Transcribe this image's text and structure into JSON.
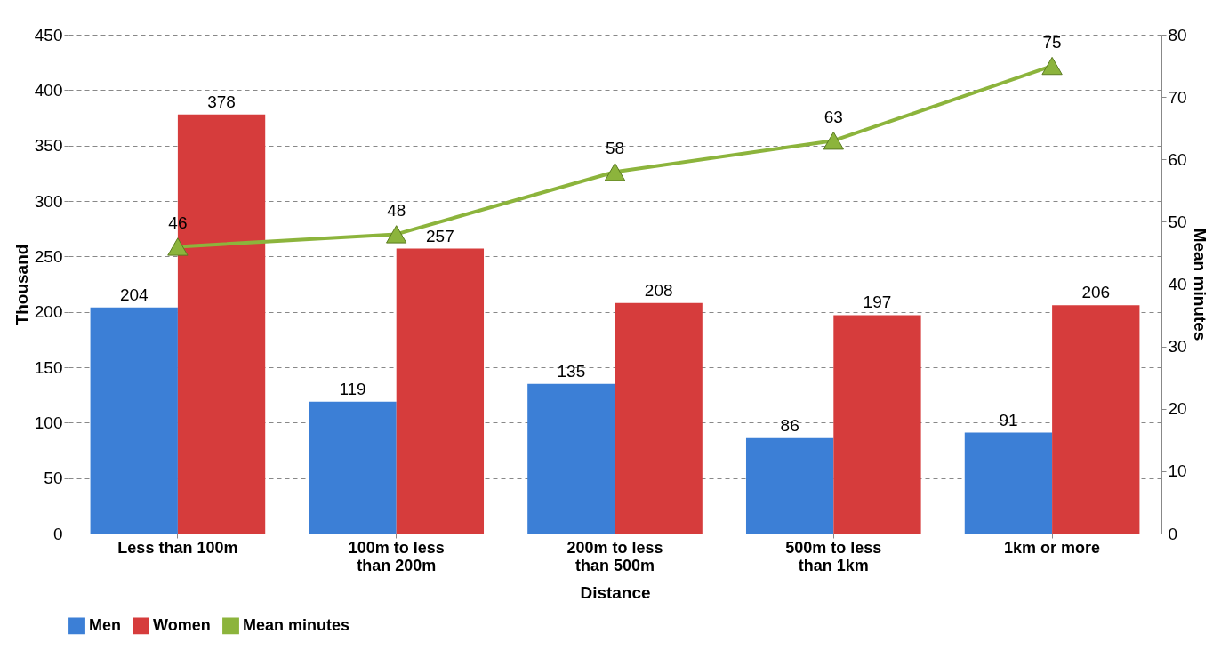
{
  "chart_data": {
    "type": "bar",
    "xlabel": "Distance",
    "ylabel": "Thousand",
    "y2label": "Mean minutes",
    "categories": [
      "Less than 100m",
      "100m to less than 200m",
      "200m to less than 500m",
      "500m to less than 1km",
      "1km or more"
    ],
    "series": [
      {
        "name": "Men",
        "color": "#3c7fd6",
        "values": [
          204,
          119,
          135,
          86,
          91
        ]
      },
      {
        "name": "Women",
        "color": "#d63c3c",
        "values": [
          378,
          257,
          208,
          197,
          206
        ]
      },
      {
        "name": "Mean minutes",
        "type": "line",
        "axis": "y2",
        "color": "#8cb43c",
        "values": [
          46,
          48,
          58,
          63,
          75
        ]
      }
    ],
    "ylim": [
      0,
      450
    ],
    "yticks": [
      0,
      50,
      100,
      150,
      200,
      250,
      300,
      350,
      400,
      450
    ],
    "y2lim": [
      0,
      80
    ],
    "y2ticks": [
      0,
      10,
      20,
      30,
      40,
      50,
      60,
      70,
      80
    ],
    "grid": "y",
    "legend": "bottom",
    "marker": "triangle",
    "data_labels": true
  }
}
